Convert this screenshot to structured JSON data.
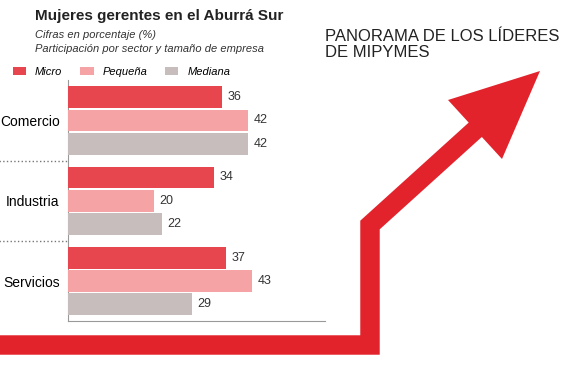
{
  "chart_data": {
    "type": "bar",
    "title": "Mujeres gerentes en el Aburrá Sur",
    "subtitle": [
      "Cifras en porcentaje (%)",
      "Participación por sector y tamaño de empresa"
    ],
    "annotation": "PANORAMA DE LOS LÍDERES DE MIPYMES",
    "orientation": "horizontal",
    "categories": [
      "Comercio",
      "Industria",
      "Servicios"
    ],
    "series": [
      {
        "name": "Micro",
        "color": "#e8464f",
        "values": [
          36,
          34,
          37
        ]
      },
      {
        "name": "Pequeña",
        "color": "#f5a3a5",
        "values": [
          42,
          20,
          43
        ]
      },
      {
        "name": "Mediana",
        "color": "#c8bdbd",
        "values": [
          42,
          22,
          29
        ]
      }
    ],
    "xlim": [
      0,
      60
    ],
    "data_labels": true,
    "legend": "upper left",
    "tick_labels": "y",
    "grid": false
  }
}
